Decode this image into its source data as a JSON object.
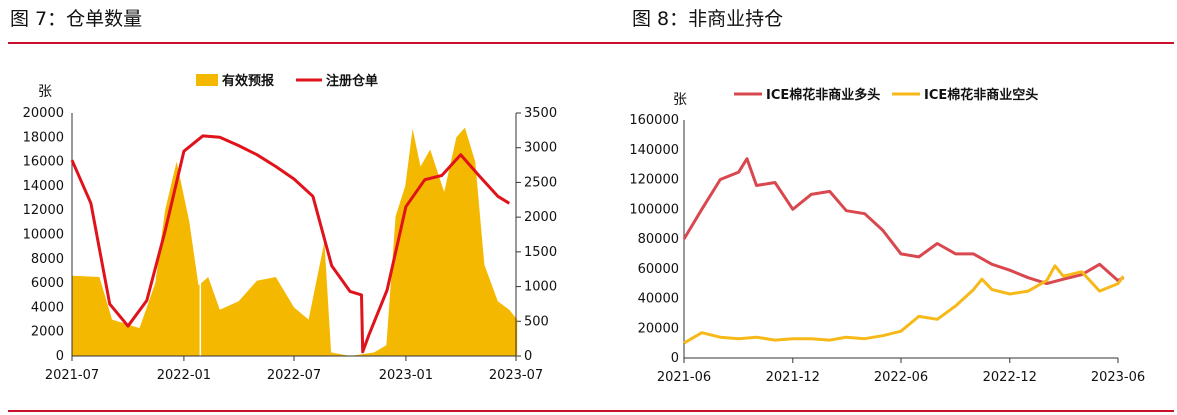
{
  "figures": [
    {
      "title": "图 7：仓单数量"
    },
    {
      "title": "图 8：非商业持仓"
    }
  ],
  "colors": {
    "accent_red": "#e0121b",
    "gold": "#f5b800",
    "pink_red": "#d9484f",
    "yellow": "#f7b91a",
    "rule": "#c8102e"
  },
  "chart_data": [
    {
      "type": "bar",
      "title": "",
      "unit_label": "张",
      "xlabel": "",
      "x_ticks": [
        "2021-07",
        "2022-01",
        "2022-07",
        "2023-01",
        "2023-07"
      ],
      "y_left_ticks": [
        "20000",
        "18000",
        "16000",
        "14000",
        "12000",
        "10000",
        "8000",
        "6000",
        "4000",
        "2000",
        "0"
      ],
      "y_right_ticks": [
        "3500",
        "3000",
        "2500",
        "2000",
        "1500",
        "1000",
        "500",
        "0"
      ],
      "ylim_left": [
        0,
        20000
      ],
      "ylim_right": [
        0,
        3500
      ],
      "legend_position": "top-center",
      "series": [
        {
          "name": "有效预报",
          "type": "bar",
          "axis": "left",
          "points": [
            [
              "2021-07-01",
              6600
            ],
            [
              "2021-08-15",
              6500
            ],
            [
              "2021-09-05",
              3000
            ],
            [
              "2021-10-20",
              2300
            ],
            [
              "2021-11-15",
              6000
            ],
            [
              "2021-12-01",
              12000
            ],
            [
              "2021-12-20",
              16000
            ],
            [
              "2022-01-10",
              11000
            ],
            [
              "2022-01-25",
              5800
            ],
            [
              "2022-02-10",
              6500
            ],
            [
              "2022-03-01",
              3800
            ],
            [
              "2022-04-01",
              4500
            ],
            [
              "2022-05-01",
              6200
            ],
            [
              "2022-06-01",
              6500
            ],
            [
              "2022-07-01",
              4000
            ],
            [
              "2022-07-25",
              3000
            ],
            [
              "2022-08-20",
              9400
            ],
            [
              "2022-08-31",
              300
            ],
            [
              "2022-10-01",
              0
            ],
            [
              "2022-11-10",
              300
            ],
            [
              "2022-11-30",
              900
            ],
            [
              "2022-12-15",
              11500
            ],
            [
              "2022-12-31",
              14000
            ],
            [
              "2023-01-12",
              18700
            ],
            [
              "2023-01-25",
              15600
            ],
            [
              "2023-02-10",
              17000
            ],
            [
              "2023-03-05",
              13500
            ],
            [
              "2023-03-25",
              18000
            ],
            [
              "2023-04-08",
              18800
            ],
            [
              "2023-04-25",
              16000
            ],
            [
              "2023-05-10",
              7500
            ],
            [
              "2023-06-01",
              4500
            ],
            [
              "2023-06-20",
              3800
            ],
            [
              "2023-07-03",
              3000
            ]
          ]
        },
        {
          "name": "注册仓单",
          "type": "line",
          "axis": "right",
          "points": [
            [
              "2021-07-01",
              2820
            ],
            [
              "2021-08-01",
              2200
            ],
            [
              "2021-09-01",
              750
            ],
            [
              "2021-10-01",
              430
            ],
            [
              "2021-11-01",
              800
            ],
            [
              "2021-12-01",
              1800
            ],
            [
              "2022-01-01",
              2950
            ],
            [
              "2022-02-01",
              3170
            ],
            [
              "2022-03-01",
              3150
            ],
            [
              "2022-04-01",
              3030
            ],
            [
              "2022-05-01",
              2900
            ],
            [
              "2022-06-01",
              2730
            ],
            [
              "2022-07-01",
              2550
            ],
            [
              "2022-08-01",
              2300
            ],
            [
              "2022-09-01",
              1300
            ],
            [
              "2022-10-01",
              930
            ],
            [
              "2022-10-20",
              880
            ],
            [
              "2022-10-22",
              60
            ],
            [
              "2022-11-01",
              300
            ],
            [
              "2022-12-01",
              950
            ],
            [
              "2023-01-01",
              2150
            ],
            [
              "2023-02-01",
              2540
            ],
            [
              "2023-03-01",
              2600
            ],
            [
              "2023-04-01",
              2900
            ],
            [
              "2023-05-01",
              2600
            ],
            [
              "2023-06-01",
              2300
            ],
            [
              "2023-06-20",
              2200
            ]
          ]
        }
      ]
    },
    {
      "type": "line",
      "title": "",
      "unit_label": "张",
      "xlabel": "",
      "x_ticks": [
        "2021-06",
        "2021-12",
        "2022-06",
        "2022-12",
        "2023-06"
      ],
      "y_ticks": [
        "160000",
        "140000",
        "120000",
        "100000",
        "80000",
        "60000",
        "40000",
        "20000",
        "0"
      ],
      "ylim": [
        0,
        160000
      ],
      "legend_position": "top",
      "series": [
        {
          "name": "ICE棉花非商业多头",
          "points": [
            [
              "2021-06-01",
              80000
            ],
            [
              "2021-07-01",
              100000
            ],
            [
              "2021-08-01",
              120000
            ],
            [
              "2021-09-01",
              125000
            ],
            [
              "2021-09-15",
              134000
            ],
            [
              "2021-10-01",
              116000
            ],
            [
              "2021-11-01",
              118000
            ],
            [
              "2021-12-01",
              100000
            ],
            [
              "2022-01-01",
              110000
            ],
            [
              "2022-02-01",
              112000
            ],
            [
              "2022-03-01",
              99000
            ],
            [
              "2022-04-01",
              97000
            ],
            [
              "2022-05-01",
              86000
            ],
            [
              "2022-06-01",
              70000
            ],
            [
              "2022-07-01",
              68000
            ],
            [
              "2022-08-01",
              77000
            ],
            [
              "2022-09-01",
              70000
            ],
            [
              "2022-10-01",
              70000
            ],
            [
              "2022-11-01",
              63000
            ],
            [
              "2022-12-01",
              59000
            ],
            [
              "2023-01-01",
              54000
            ],
            [
              "2023-02-01",
              50000
            ],
            [
              "2023-03-01",
              53000
            ],
            [
              "2023-04-01",
              56000
            ],
            [
              "2023-05-01",
              63000
            ],
            [
              "2023-06-01",
              52000
            ],
            [
              "2023-06-10",
              54000
            ]
          ]
        },
        {
          "name": "ICE棉花非商业空头",
          "points": [
            [
              "2021-06-01",
              10000
            ],
            [
              "2021-07-01",
              17000
            ],
            [
              "2021-08-01",
              14000
            ],
            [
              "2021-09-01",
              13000
            ],
            [
              "2021-10-01",
              14000
            ],
            [
              "2021-11-01",
              12000
            ],
            [
              "2021-12-01",
              13000
            ],
            [
              "2022-01-01",
              13000
            ],
            [
              "2022-02-01",
              12000
            ],
            [
              "2022-03-01",
              14000
            ],
            [
              "2022-04-01",
              13000
            ],
            [
              "2022-05-01",
              15000
            ],
            [
              "2022-06-01",
              18000
            ],
            [
              "2022-07-01",
              28000
            ],
            [
              "2022-08-01",
              26000
            ],
            [
              "2022-09-01",
              35000
            ],
            [
              "2022-10-01",
              46000
            ],
            [
              "2022-10-15",
              53000
            ],
            [
              "2022-11-01",
              46000
            ],
            [
              "2022-12-01",
              43000
            ],
            [
              "2023-01-01",
              45000
            ],
            [
              "2023-02-01",
              52000
            ],
            [
              "2023-02-15",
              62000
            ],
            [
              "2023-03-01",
              55000
            ],
            [
              "2023-04-01",
              58000
            ],
            [
              "2023-05-01",
              45000
            ],
            [
              "2023-06-01",
              50000
            ],
            [
              "2023-06-10",
              55000
            ]
          ]
        }
      ]
    }
  ]
}
